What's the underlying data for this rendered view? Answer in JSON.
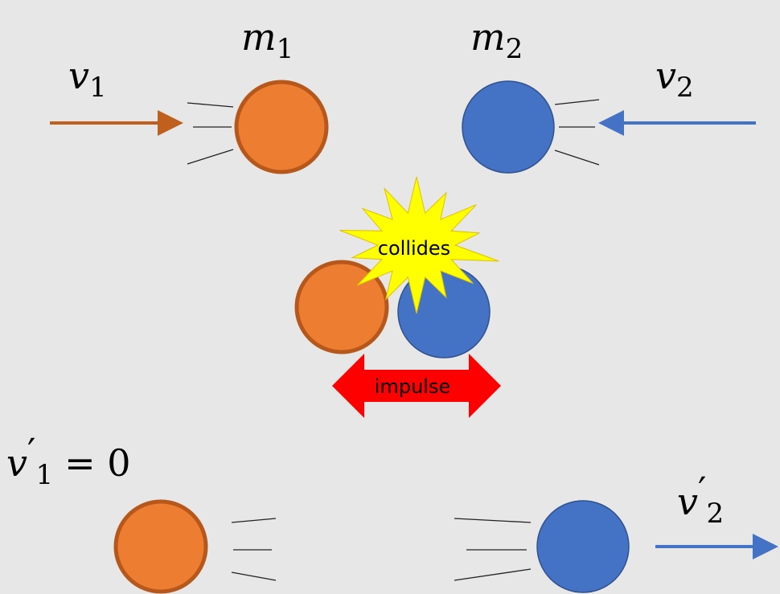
{
  "labels": {
    "m1": {
      "base": "m",
      "sub": "1"
    },
    "m2": {
      "base": "m",
      "sub": "2"
    },
    "v1": {
      "base": "v",
      "sub": "1"
    },
    "v2": {
      "base": "v",
      "sub": "2"
    },
    "v1p": {
      "base": "v",
      "prime": "′",
      "sub": "1",
      "rest": "= 0"
    },
    "v2p": {
      "base": "v",
      "prime": "′",
      "sub": "2"
    },
    "collides": "collides",
    "impulse": "impulse"
  }
}
